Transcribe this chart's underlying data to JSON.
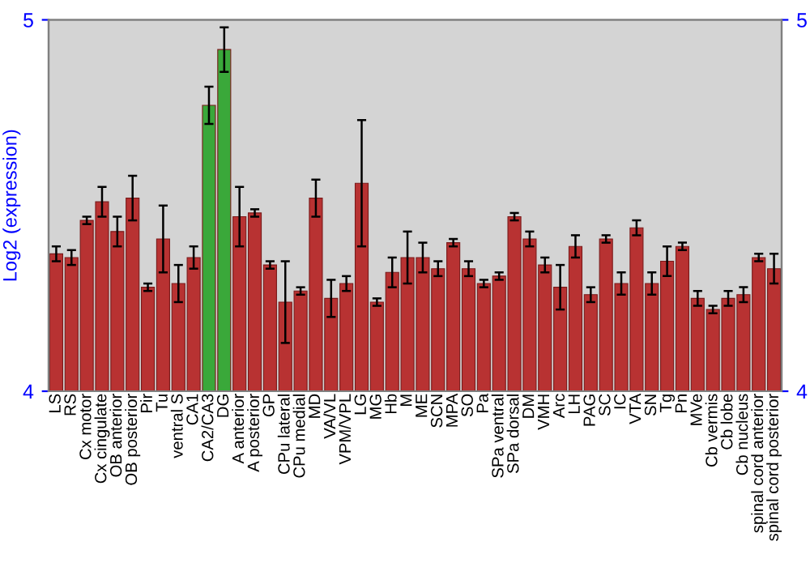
{
  "chart_data": {
    "type": "bar",
    "ylabel": "Log2 (expression)",
    "categories": [
      "LS",
      "RS",
      "Cx motor",
      "Cx cingulate",
      "OB anterior",
      "OB posterior",
      "Pir",
      "Tu",
      "ventral S",
      "CA1",
      "CA2/CA3",
      "DG",
      "A anterior",
      "A posterior",
      "GP",
      "CPu lateral",
      "CPu medial",
      "MD",
      "VA/VL",
      "VPM/VPL",
      "LG",
      "MG",
      "Hb",
      "M",
      "ME",
      "SCN",
      "MPA",
      "SO",
      "Pa",
      "SPa ventral",
      "SPa dorsal",
      "DM",
      "VMH",
      "Arc",
      "LH",
      "PAG",
      "SC",
      "IC",
      "VTA",
      "SN",
      "Tg",
      "Pn",
      "MVe",
      "Cb vermis",
      "Cb lobe",
      "Cb nucleus",
      "spinal cord anterior",
      "spinal cord posterior"
    ],
    "values": [
      4.37,
      4.36,
      4.46,
      4.51,
      4.43,
      4.52,
      4.28,
      4.41,
      4.29,
      4.36,
      4.77,
      4.92,
      4.47,
      4.48,
      4.34,
      4.24,
      4.27,
      4.52,
      4.25,
      4.29,
      4.56,
      4.24,
      4.32,
      4.36,
      4.36,
      4.33,
      4.4,
      4.33,
      4.29,
      4.31,
      4.47,
      4.41,
      4.34,
      4.28,
      4.39,
      4.26,
      4.41,
      4.29,
      4.44,
      4.29,
      4.35,
      4.39,
      4.25,
      4.22,
      4.25,
      4.26,
      4.36,
      4.33
    ],
    "errors": [
      0.02,
      0.02,
      0.01,
      0.04,
      0.04,
      0.06,
      0.01,
      0.09,
      0.05,
      0.03,
      0.05,
      0.06,
      0.08,
      0.01,
      0.01,
      0.11,
      0.01,
      0.05,
      0.05,
      0.02,
      0.17,
      0.01,
      0.04,
      0.07,
      0.04,
      0.02,
      0.01,
      0.02,
      0.01,
      0.01,
      0.01,
      0.02,
      0.02,
      0.06,
      0.03,
      0.02,
      0.01,
      0.03,
      0.02,
      0.03,
      0.04,
      0.01,
      0.02,
      0.01,
      0.02,
      0.02,
      0.01,
      0.04
    ],
    "colors": [
      "#b83232",
      "#b83232",
      "#b83232",
      "#b83232",
      "#b83232",
      "#b83232",
      "#b83232",
      "#b83232",
      "#b83232",
      "#b83232",
      "#3aa83a",
      "#3aa83a",
      "#b83232",
      "#b83232",
      "#b83232",
      "#b83232",
      "#b83232",
      "#b83232",
      "#b83232",
      "#b83232",
      "#b83232",
      "#b83232",
      "#b83232",
      "#b83232",
      "#b83232",
      "#b83232",
      "#b83232",
      "#b83232",
      "#b83232",
      "#b83232",
      "#b83232",
      "#b83232",
      "#b83232",
      "#b83232",
      "#b83232",
      "#b83232",
      "#b83232",
      "#b83232",
      "#b83232",
      "#b83232",
      "#b83232",
      "#b83232",
      "#b83232",
      "#b83232",
      "#b83232",
      "#b83232",
      "#b83232",
      "#b83232"
    ],
    "ylim": [
      4,
      5
    ],
    "yticks": [
      4,
      5
    ],
    "y2lim": [
      4,
      5
    ],
    "y2ticks": [
      4,
      5
    ],
    "grid": false,
    "legend": false
  }
}
